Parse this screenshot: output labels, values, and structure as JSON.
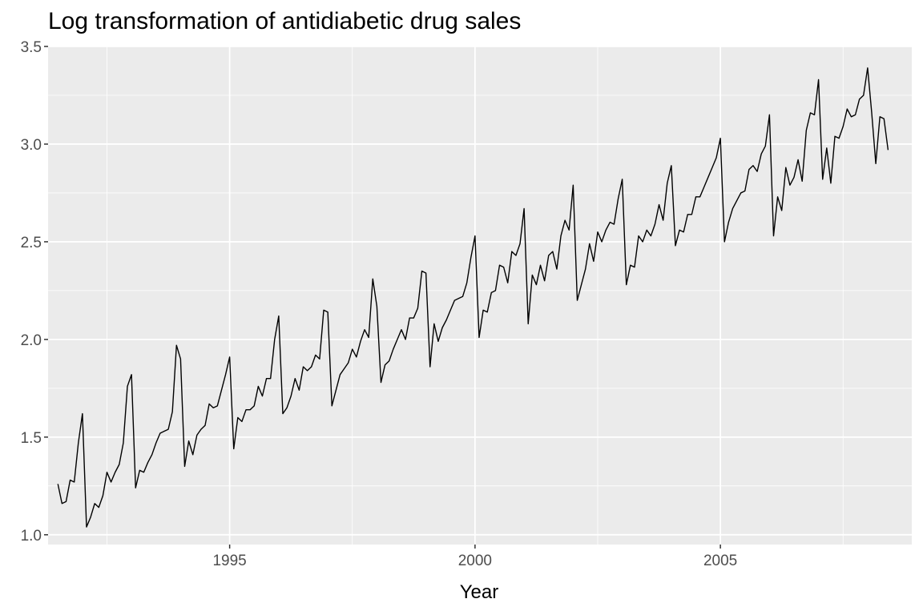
{
  "chart_data": {
    "type": "line",
    "title": "Log transformation of antidiabetic drug sales",
    "xlabel": "Year",
    "ylabel": "",
    "xlim": [
      1991.3,
      2008.9
    ],
    "ylim": [
      0.95,
      3.5
    ],
    "x_ticks": [
      1995,
      2000,
      2005
    ],
    "x_tick_labels": [
      "1995",
      "2000",
      "2005"
    ],
    "y_ticks": [
      1.0,
      1.5,
      2.0,
      2.5,
      3.0,
      3.5
    ],
    "y_tick_labels": [
      "1.0",
      "1.5",
      "2.0",
      "2.5",
      "3.0",
      "3.5"
    ],
    "grid": true,
    "colors": {
      "panel": "#ebebeb",
      "grid": "#ffffff",
      "line": "#000000",
      "tick": "#333333",
      "tick_label": "#4d4d4d"
    },
    "series": [
      {
        "start": "1991-07",
        "frequency": "monthly",
        "values": [
          1.26,
          1.16,
          1.17,
          1.28,
          1.27,
          1.47,
          1.62,
          1.04,
          1.09,
          1.16,
          1.14,
          1.2,
          1.32,
          1.27,
          1.32,
          1.36,
          1.47,
          1.76,
          1.82,
          1.24,
          1.33,
          1.32,
          1.37,
          1.41,
          1.47,
          1.52,
          1.53,
          1.54,
          1.63,
          1.97,
          1.9,
          1.35,
          1.48,
          1.41,
          1.51,
          1.54,
          1.56,
          1.67,
          1.65,
          1.66,
          1.74,
          1.82,
          1.91,
          1.44,
          1.6,
          1.58,
          1.64,
          1.64,
          1.66,
          1.76,
          1.71,
          1.8,
          1.8,
          2.0,
          2.12,
          1.62,
          1.65,
          1.71,
          1.8,
          1.74,
          1.86,
          1.84,
          1.86,
          1.92,
          1.9,
          2.15,
          2.14,
          1.66,
          1.74,
          1.82,
          1.85,
          1.88,
          1.95,
          1.91,
          1.99,
          2.05,
          2.01,
          2.31,
          2.17,
          1.78,
          1.87,
          1.89,
          1.95,
          2.0,
          2.05,
          2.0,
          2.11,
          2.11,
          2.16,
          2.35,
          2.34,
          1.86,
          2.08,
          1.99,
          2.06,
          2.1,
          2.15,
          2.2,
          2.21,
          2.22,
          2.29,
          2.42,
          2.53,
          2.01,
          2.15,
          2.14,
          2.24,
          2.25,
          2.38,
          2.37,
          2.29,
          2.45,
          2.43,
          2.49,
          2.67,
          2.08,
          2.33,
          2.28,
          2.38,
          2.3,
          2.43,
          2.45,
          2.36,
          2.53,
          2.61,
          2.56,
          2.79,
          2.2,
          2.28,
          2.36,
          2.49,
          2.4,
          2.55,
          2.5,
          2.56,
          2.6,
          2.59,
          2.72,
          2.82,
          2.28,
          2.38,
          2.37,
          2.53,
          2.5,
          2.56,
          2.53,
          2.59,
          2.69,
          2.61,
          2.8,
          2.89,
          2.48,
          2.56,
          2.55,
          2.64,
          2.64,
          2.73,
          2.73,
          2.78,
          2.83,
          2.88,
          2.93,
          3.03,
          2.5,
          2.6,
          2.67,
          2.71,
          2.75,
          2.76,
          2.87,
          2.89,
          2.86,
          2.95,
          2.99,
          3.15,
          2.53,
          2.73,
          2.66,
          2.88,
          2.79,
          2.83,
          2.92,
          2.81,
          3.07,
          3.16,
          3.15,
          3.33,
          2.82,
          2.98,
          2.8,
          3.04,
          3.03,
          3.09,
          3.18,
          3.14,
          3.15,
          3.23,
          3.25,
          3.39,
          3.16,
          2.9,
          3.14,
          3.13,
          2.97
        ]
      }
    ]
  }
}
